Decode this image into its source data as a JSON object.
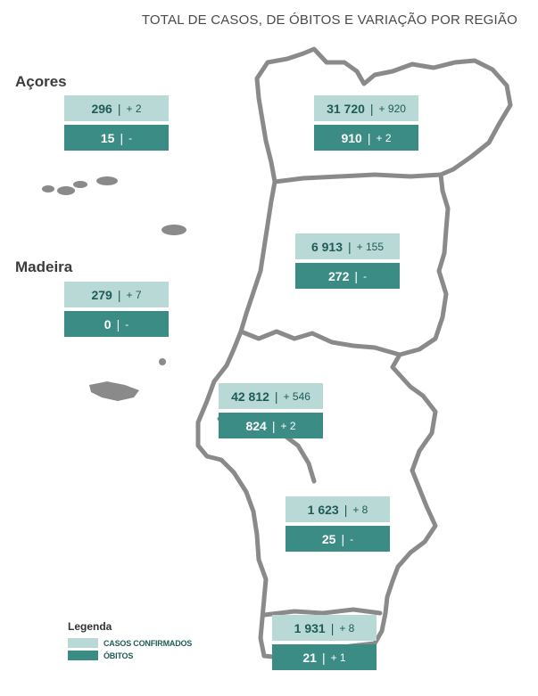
{
  "title": "TOTAL DE CASOS, DE ÓBITOS  E VARIAÇÃO POR REGIÃO",
  "labels": {
    "azores": "Açores",
    "madeira": "Madeira"
  },
  "colors": {
    "cases_bg": "#b8d9d6",
    "deaths_bg": "#3c8c86",
    "map_stroke": "#8a8a8a"
  },
  "regions": [
    {
      "id": "acores",
      "cases": "296",
      "cases_delta": "+ 2",
      "deaths": "15",
      "deaths_delta": "-"
    },
    {
      "id": "madeira",
      "cases": "279",
      "cases_delta": "+ 7",
      "deaths": "0",
      "deaths_delta": "-"
    },
    {
      "id": "norte",
      "cases": "31 720",
      "cases_delta": "+ 920",
      "deaths": "910",
      "deaths_delta": "+ 2"
    },
    {
      "id": "centro",
      "cases": "6 913",
      "cases_delta": "+ 155",
      "deaths": "272",
      "deaths_delta": "-"
    },
    {
      "id": "lisboa",
      "cases": "42 812",
      "cases_delta": "+ 546",
      "deaths": "824",
      "deaths_delta": "+ 2"
    },
    {
      "id": "alentejo",
      "cases": "1 623",
      "cases_delta": "+ 8",
      "deaths": "25",
      "deaths_delta": "-"
    },
    {
      "id": "algarve",
      "cases": "1 931",
      "cases_delta": "+ 8",
      "deaths": "21",
      "deaths_delta": "+ 1"
    }
  ],
  "legend": {
    "title": "Legenda",
    "cases_label": "CASOS CONFIRMADOS",
    "deaths_label": "ÓBITOS"
  }
}
